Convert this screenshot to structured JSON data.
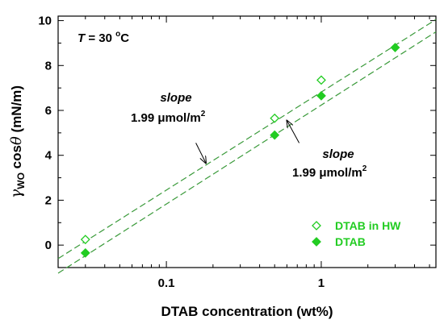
{
  "chart_data": {
    "type": "scatter",
    "title": "",
    "xlabel": "DTAB concentration (wt%)",
    "ylabel": "γ_WO cos θ  (mN/m)",
    "xscale": "log",
    "xlim": [
      0.02,
      5.5
    ],
    "ylim": [
      -1,
      10.2
    ],
    "x_tick_labels": [
      "0.1",
      "1"
    ],
    "x_tick_values": [
      0.1,
      1
    ],
    "y_ticks": [
      0,
      2,
      4,
      6,
      8,
      10
    ],
    "y_tick_labels": [
      "0",
      "2",
      "4",
      "6",
      "8",
      "10"
    ],
    "grid": false,
    "legend_position": "bottom-right",
    "colors": {
      "series": "#22cc22",
      "fit_line": "#3a9a3a",
      "axes": "#000000"
    },
    "series": [
      {
        "name": "DTAB in HW",
        "marker": "open-diamond",
        "x": [
          0.03,
          0.5,
          1.0
        ],
        "y": [
          0.25,
          5.65,
          7.35
        ]
      },
      {
        "name": "DTAB",
        "marker": "filled-diamond",
        "x": [
          0.03,
          0.5,
          1.0,
          3.0
        ],
        "y": [
          -0.35,
          4.9,
          6.65,
          8.8
        ]
      }
    ],
    "fit_lines": [
      {
        "series": "DTAB in HW",
        "style": "dashed",
        "x": [
          0.02,
          5.5
        ],
        "y": [
          -0.6,
          10.05
        ]
      },
      {
        "series": "DTAB",
        "style": "dashed",
        "x": [
          0.02,
          5.5
        ],
        "y": [
          -1.25,
          9.5
        ]
      }
    ],
    "annotations": {
      "temperature": {
        "prefix": "T",
        "rest": " = 30 ",
        "degree": "o",
        "unit": "C"
      },
      "slope_upper": {
        "label": "slope",
        "value": "1.99 μmol/m",
        "exponent": "2"
      },
      "slope_lower": {
        "label": "slope",
        "value": "1.99 μmol/m",
        "exponent": "2"
      }
    },
    "arrows": [
      {
        "from": [
          0.155,
          4.55
        ],
        "to": [
          0.18,
          3.65
        ]
      },
      {
        "from": [
          0.72,
          4.55
        ],
        "to": [
          0.6,
          5.55
        ]
      }
    ]
  }
}
